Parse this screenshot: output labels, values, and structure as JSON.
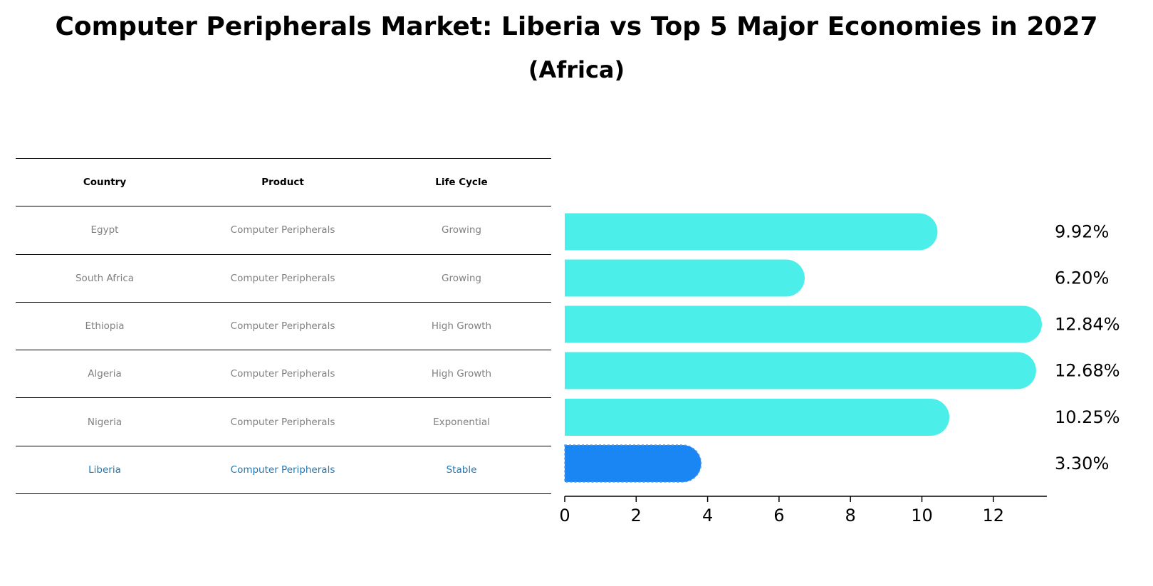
{
  "title": "Computer Peripherals Market: Liberia vs Top 5 Major Economies in 2027",
  "subtitle": "(Africa)",
  "table": {
    "headers": [
      "Country",
      "Product",
      "Life Cycle"
    ],
    "rows": [
      [
        "Egypt",
        "Computer Peripherals",
        "Growing"
      ],
      [
        "South Africa",
        "Computer Peripherals",
        "Growing"
      ],
      [
        "Ethiopia",
        "Computer Peripherals",
        "High Growth"
      ],
      [
        "Algeria",
        "Computer Peripherals",
        "High Growth"
      ],
      [
        "Nigeria",
        "Computer Peripherals",
        "Exponential"
      ],
      [
        "Liberia",
        "Computer Peripherals",
        "Stable"
      ]
    ]
  },
  "chart_data": {
    "type": "bar",
    "orientation": "horizontal",
    "categories": [
      "Egypt",
      "South Africa",
      "Ethiopia",
      "Algeria",
      "Nigeria",
      "Liberia"
    ],
    "values": [
      9.92,
      6.2,
      12.84,
      12.68,
      10.25,
      3.3
    ],
    "value_labels": [
      "9.92%",
      "6.20%",
      "12.84%",
      "12.68%",
      "10.25%",
      "3.30%"
    ],
    "highlight": "Liberia",
    "xlim": [
      0,
      13.5
    ],
    "xticks": [
      "0",
      "2",
      "4",
      "6",
      "8",
      "10",
      "12"
    ],
    "xlabel": "",
    "ylabel": "",
    "colors": {
      "default": "#4ceeea",
      "highlight": "#1a86f4"
    }
  }
}
